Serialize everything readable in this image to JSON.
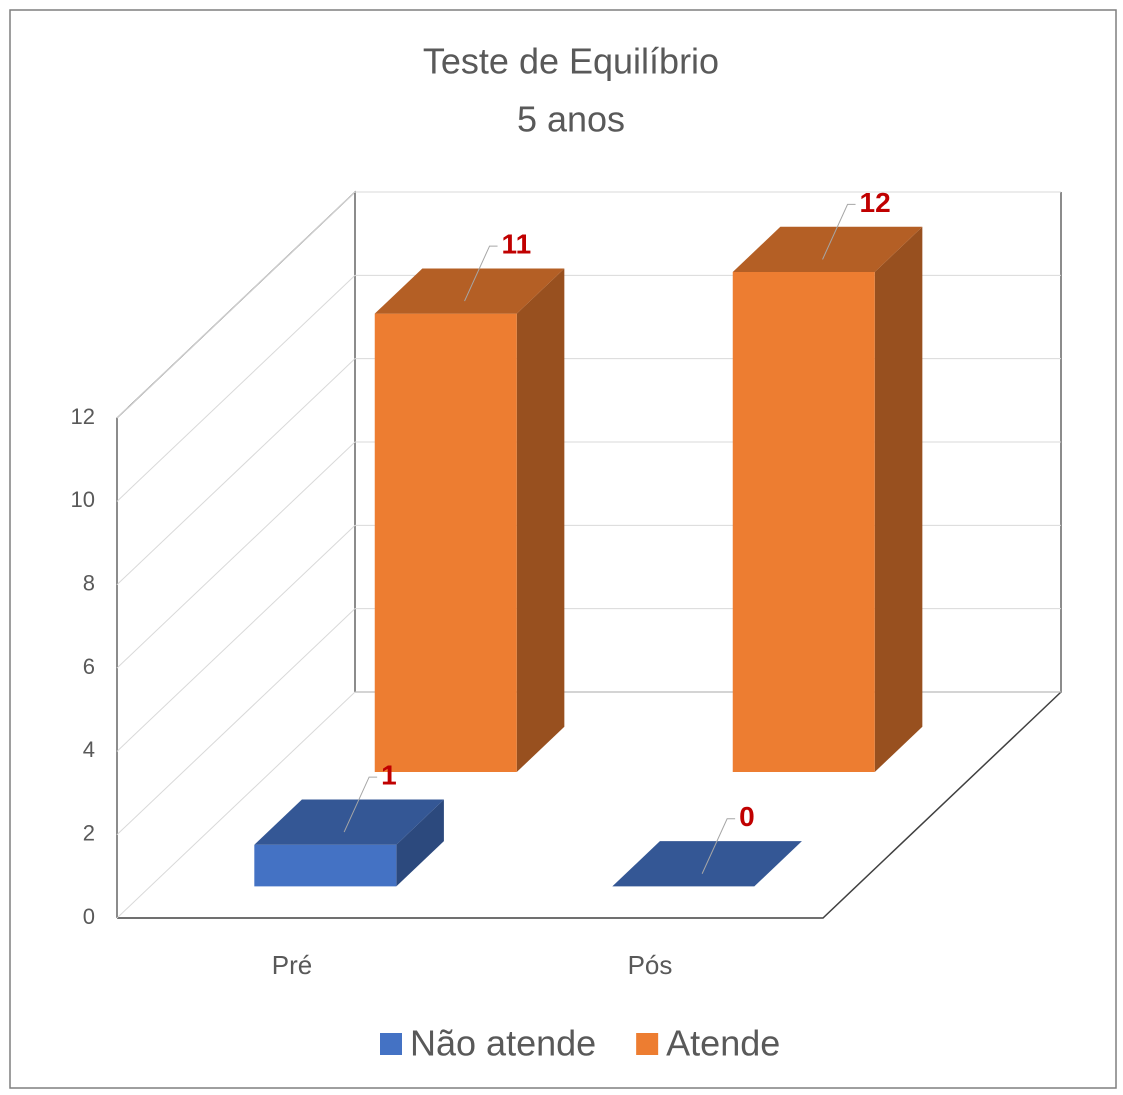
{
  "chart_data": {
    "type": "bar3d",
    "title": "Teste de Equilíbrio",
    "subtitle": "5 anos",
    "categories": [
      "Pré",
      "Pós"
    ],
    "series": [
      {
        "name": "Não atende",
        "color": "#4472c4",
        "values": [
          1,
          0
        ]
      },
      {
        "name": "Atende",
        "color": "#ed7d31",
        "values": [
          11,
          12
        ]
      }
    ],
    "ylim": [
      0,
      12
    ],
    "yticks": [
      0,
      2,
      4,
      6,
      8,
      10,
      12
    ],
    "grid": true,
    "legend": "bottom"
  }
}
